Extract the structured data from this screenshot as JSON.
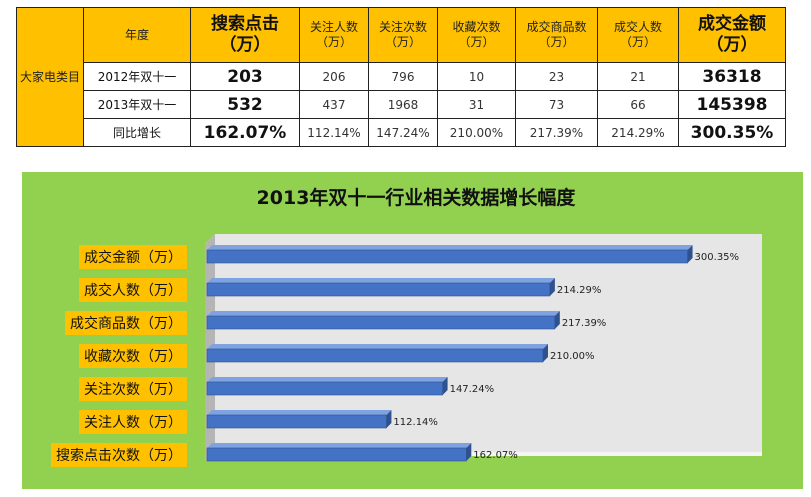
{
  "table": {
    "row_group_label": "大家电类目",
    "headers": [
      "年度",
      "搜索点击\n（万）",
      "关注人数\n（万）",
      "关注次数\n（万）",
      "收藏次数\n（万）",
      "成交商品数\n（万）",
      "成交人数\n（万）",
      "成交金额\n（万）"
    ],
    "rows": [
      {
        "label": "2012年双十一",
        "values": [
          "203",
          "206",
          "796",
          "10",
          "23",
          "21",
          "36318"
        ]
      },
      {
        "label": "2013年双十一",
        "values": [
          "532",
          "437",
          "1968",
          "31",
          "73",
          "66",
          "145398"
        ]
      },
      {
        "label": "同比增长",
        "values": [
          "162.07%",
          "112.14%",
          "147.24%",
          "210.00%",
          "217.39%",
          "214.29%",
          "300.35%"
        ]
      }
    ]
  },
  "chart_data": {
    "type": "bar",
    "orientation": "horizontal",
    "title": "2013年双十一行业相关数据增长幅度",
    "categories": [
      "成交金额（万）",
      "成交人数（万）",
      "成交商品数（万）",
      "收藏次数（万）",
      "关注次数（万）",
      "关注人数（万）",
      "搜索点击次数（万）"
    ],
    "values": [
      300.35,
      214.29,
      217.39,
      210.0,
      147.24,
      112.14,
      162.07
    ],
    "data_labels": [
      "300.35%",
      "214.29%",
      "217.39%",
      "210.00%",
      "147.24%",
      "112.14%",
      "162.07%"
    ],
    "xlim": [
      0,
      350
    ],
    "grid": false,
    "legend": "none",
    "colors": {
      "bar": "#4472C4",
      "bar_top": "#7FA3E0",
      "bar_dark": "#2F528F",
      "plot_bg": "#E6E6E6",
      "chart_bg": "#92D050",
      "label_bg": "#FFC000"
    }
  }
}
